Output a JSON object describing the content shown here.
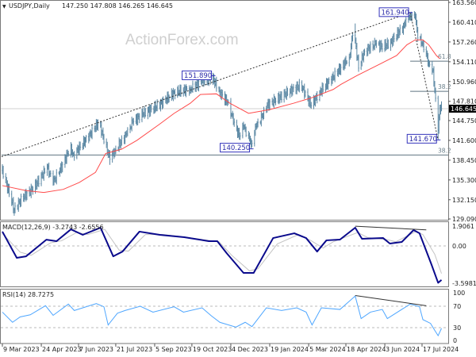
{
  "header": {
    "arrow": "▼",
    "symbol": "USDJPY,Daily",
    "ohlc": "147.250 147.808 146.265 146.645"
  },
  "watermark": "ActionForex.com",
  "colors": {
    "bars": "#5a87a3",
    "ma": "#ff4a4a",
    "macd": "#0a0a8c",
    "signal": "#c4c4c4",
    "rsi": "#4ea6ff",
    "label_box": "#3333bb",
    "price_tag_bg": "#000000"
  },
  "x_axis": {
    "labels": [
      {
        "date": "2023-03-09",
        "text": "9 Mar 2023"
      },
      {
        "date": "2023-04-24",
        "text": "24 Apr 2023"
      },
      {
        "date": "2023-06-07",
        "text": "7 Jun 2023"
      },
      {
        "date": "2023-07-21",
        "text": "21 Jul 2023"
      },
      {
        "date": "2023-09-05",
        "text": "5 Sep 2023"
      },
      {
        "date": "2023-10-19",
        "text": "19 Oct 2023"
      },
      {
        "date": "2023-12-04",
        "text": "4 Dec 2023"
      },
      {
        "date": "2024-01-19",
        "text": "19 Jan 2024"
      },
      {
        "date": "2024-03-05",
        "text": "5 Mar 2024"
      },
      {
        "date": "2024-04-18",
        "text": "18 Apr 2024"
      },
      {
        "date": "2024-06-03",
        "text": "3 Jun 2024"
      },
      {
        "date": "2024-07-17",
        "text": "17 Jul 2024"
      }
    ]
  },
  "chart_data": [
    {
      "type": "ohlc-bar",
      "panel": "price",
      "title": "USDJPY,Daily",
      "ylim": [
        129.09,
        163.56
      ],
      "y_ticks": [
        "163.560",
        "160.410",
        "157.260",
        "154.110",
        "150.960",
        "147.810",
        "144.750",
        "141.600",
        "138.450",
        "135.300",
        "132.150",
        "129.090"
      ],
      "current_price": 146.645,
      "current_price_label": "146.645",
      "closes": [
        {
          "d": "2023-03-09",
          "c": 136.8
        },
        {
          "d": "2023-03-23",
          "c": 130.6,
          "l": 129.6
        },
        {
          "d": "2023-04-02",
          "c": 132.5
        },
        {
          "d": "2023-04-15",
          "c": 134.0
        },
        {
          "d": "2023-05-01",
          "c": 137.3
        },
        {
          "d": "2023-05-08",
          "c": 134.9
        },
        {
          "d": "2023-05-20",
          "c": 137.9
        },
        {
          "d": "2023-05-28",
          "c": 140.5
        },
        {
          "d": "2023-06-01",
          "c": 139.3
        },
        {
          "d": "2023-06-17",
          "c": 141.9
        },
        {
          "d": "2023-07-01",
          "c": 144.5,
          "h": 145.1
        },
        {
          "d": "2023-07-14",
          "c": 138.6,
          "l": 137.7
        },
        {
          "d": "2023-07-20",
          "c": 140.0
        },
        {
          "d": "2023-08-03",
          "c": 142.6
        },
        {
          "d": "2023-08-10",
          "c": 144.5
        },
        {
          "d": "2023-08-22",
          "c": 145.8
        },
        {
          "d": "2023-09-10",
          "c": 147.2
        },
        {
          "d": "2023-09-28",
          "c": 149.2
        },
        {
          "d": "2023-10-17",
          "c": 149.8
        },
        {
          "d": "2023-10-31",
          "c": 150.9
        },
        {
          "d": "2023-11-12",
          "c": 151.6,
          "h": 151.89
        },
        {
          "d": "2023-11-21",
          "c": 149.3
        },
        {
          "d": "2023-11-30",
          "c": 147.6
        },
        {
          "d": "2023-12-08",
          "c": 144.5
        },
        {
          "d": "2023-12-14",
          "c": 142.2
        },
        {
          "d": "2023-12-19",
          "c": 143.8
        },
        {
          "d": "2023-12-27",
          "c": 141.5
        },
        {
          "d": "2023-12-28",
          "c": 141.0,
          "l": 140.25
        },
        {
          "d": "2024-01-03",
          "c": 143.8
        },
        {
          "d": "2024-01-10",
          "c": 145.4
        },
        {
          "d": "2024-01-16",
          "c": 147.2
        },
        {
          "d": "2024-02-10",
          "c": 149.3
        },
        {
          "d": "2024-02-25",
          "c": 150.4
        },
        {
          "d": "2024-03-08",
          "c": 147.1
        },
        {
          "d": "2024-03-18",
          "c": 149.3
        },
        {
          "d": "2024-04-03",
          "c": 151.7
        },
        {
          "d": "2024-04-12",
          "c": 153.2
        },
        {
          "d": "2024-04-22",
          "c": 154.8
        },
        {
          "d": "2024-04-26",
          "c": 158.3
        },
        {
          "d": "2024-04-29",
          "c": 157.5,
          "h": 160.2
        },
        {
          "d": "2024-05-03",
          "c": 153.1
        },
        {
          "d": "2024-05-10",
          "c": 155.8
        },
        {
          "d": "2024-05-23",
          "c": 156.9
        },
        {
          "d": "2024-06-01",
          "c": 156.5
        },
        {
          "d": "2024-06-10",
          "c": 157.2
        },
        {
          "d": "2024-06-20",
          "c": 158.9
        },
        {
          "d": "2024-06-25",
          "c": 159.7
        },
        {
          "d": "2024-06-28",
          "c": 160.9
        },
        {
          "d": "2024-07-03",
          "c": 161.6,
          "h": 161.94
        },
        {
          "d": "2024-07-09",
          "c": 161.2
        },
        {
          "d": "2024-07-12",
          "c": 157.9
        },
        {
          "d": "2024-07-18",
          "c": 157.0
        },
        {
          "d": "2024-07-25",
          "c": 153.9
        },
        {
          "d": "2024-07-30",
          "c": 152.8
        },
        {
          "d": "2024-08-01",
          "c": 149.4
        },
        {
          "d": "2024-08-05",
          "c": 143.2,
          "l": 141.67
        },
        {
          "d": "2024-08-07",
          "c": 146.8
        },
        {
          "d": "2024-08-09",
          "c": 146.645,
          "o": 147.25,
          "h": 147.808,
          "l": 146.265
        }
      ],
      "moving_average": [
        {
          "d": "2023-03-09",
          "v": 134.4
        },
        {
          "d": "2023-04-06",
          "v": 133.6
        },
        {
          "d": "2023-04-27",
          "v": 133.3
        },
        {
          "d": "2023-05-20",
          "v": 133.8
        },
        {
          "d": "2023-06-08",
          "v": 134.9
        },
        {
          "d": "2023-06-27",
          "v": 136.5
        },
        {
          "d": "2023-07-09",
          "v": 139.5
        },
        {
          "d": "2023-07-28",
          "v": 140.2
        },
        {
          "d": "2023-08-15",
          "v": 141.6
        },
        {
          "d": "2023-09-10",
          "v": 144.1
        },
        {
          "d": "2023-09-28",
          "v": 145.9
        },
        {
          "d": "2023-10-17",
          "v": 147.5
        },
        {
          "d": "2023-10-29",
          "v": 148.9
        },
        {
          "d": "2023-11-17",
          "v": 149.0
        },
        {
          "d": "2023-12-03",
          "v": 147.5
        },
        {
          "d": "2023-12-25",
          "v": 145.9
        },
        {
          "d": "2024-01-19",
          "v": 146.5
        },
        {
          "d": "2024-02-16",
          "v": 147.5
        },
        {
          "d": "2024-03-09",
          "v": 148.4
        },
        {
          "d": "2024-04-03",
          "v": 149.7
        },
        {
          "d": "2024-04-12",
          "v": 150.5
        },
        {
          "d": "2024-05-01",
          "v": 151.9
        },
        {
          "d": "2024-05-29",
          "v": 153.8
        },
        {
          "d": "2024-06-17",
          "v": 155.1
        },
        {
          "d": "2024-06-29",
          "v": 156.8
        },
        {
          "d": "2024-07-09",
          "v": 157.6
        },
        {
          "d": "2024-07-18",
          "v": 157.6
        },
        {
          "d": "2024-07-25",
          "v": 156.8
        },
        {
          "d": "2024-08-03",
          "v": 155.1
        },
        {
          "d": "2024-08-07",
          "v": 154.6
        }
      ],
      "annotations": {
        "price_labels": [
          {
            "d": "2023-11-13",
            "v": 151.89,
            "text": "151.890",
            "side": "left"
          },
          {
            "d": "2023-12-28",
            "v": 140.25,
            "text": "140.250",
            "side": "left"
          },
          {
            "d": "2024-07-03",
            "v": 161.94,
            "text": "161.940",
            "side": "left"
          },
          {
            "d": "2024-08-05",
            "v": 141.67,
            "text": "141.670",
            "side": "left"
          }
        ],
        "trendlines": [
          {
            "from": {
              "d": "2023-03-08",
              "v": 139.0
            },
            "to": {
              "d": "2024-07-03",
              "v": 161.94
            },
            "style": "dotted"
          },
          {
            "from": {
              "d": "2024-07-03",
              "v": 161.94
            },
            "to": {
              "d": "2024-08-05",
              "v": 141.67
            },
            "style": "dotted"
          }
        ],
        "fib_levels": [
          {
            "v": 154.2,
            "text": "61.8",
            "from": "2024-07-03"
          },
          {
            "v": 149.41,
            "text": "38.2",
            "from": "2024-07-03"
          },
          {
            "v": 139.27,
            "text": "38.2",
            "from": "2023-03-08"
          }
        ]
      }
    },
    {
      "type": "line",
      "panel": "macd",
      "label": "MACD(12,26,9) -3.2743 -2.6556",
      "y_ticks": [
        "1.9061",
        "0.00",
        "-3.5981"
      ],
      "ylim": [
        -3.5981,
        1.9061
      ],
      "macd": [
        {
          "d": "2023-03-09",
          "v": 1.38
        },
        {
          "d": "2023-03-26",
          "v": -1.15
        },
        {
          "d": "2023-04-06",
          "v": -1.0
        },
        {
          "d": "2023-04-30",
          "v": 0.6
        },
        {
          "d": "2023-05-12",
          "v": 0.46
        },
        {
          "d": "2023-05-29",
          "v": 1.6
        },
        {
          "d": "2023-06-12",
          "v": 1.07
        },
        {
          "d": "2023-07-03",
          "v": 1.76
        },
        {
          "d": "2023-07-18",
          "v": -1.0
        },
        {
          "d": "2023-07-29",
          "v": -0.54
        },
        {
          "d": "2023-08-18",
          "v": 1.38
        },
        {
          "d": "2023-09-11",
          "v": 1.07
        },
        {
          "d": "2023-10-10",
          "v": 0.84
        },
        {
          "d": "2023-11-08",
          "v": 0.46
        },
        {
          "d": "2023-11-18",
          "v": 0.46
        },
        {
          "d": "2023-11-29",
          "v": -0.69
        },
        {
          "d": "2023-12-19",
          "v": -2.6
        },
        {
          "d": "2023-12-31",
          "v": -2.6
        },
        {
          "d": "2024-01-23",
          "v": 0.76
        },
        {
          "d": "2024-02-17",
          "v": 1.22
        },
        {
          "d": "2024-03-02",
          "v": 0.76
        },
        {
          "d": "2024-03-15",
          "v": -0.54
        },
        {
          "d": "2024-03-26",
          "v": 0.54
        },
        {
          "d": "2024-04-11",
          "v": 0.61
        },
        {
          "d": "2024-04-29",
          "v": 1.76
        },
        {
          "d": "2024-05-07",
          "v": 0.69
        },
        {
          "d": "2024-06-01",
          "v": 0.76
        },
        {
          "d": "2024-06-09",
          "v": 0.23
        },
        {
          "d": "2024-06-23",
          "v": 0.38
        },
        {
          "d": "2024-07-07",
          "v": 1.53
        },
        {
          "d": "2024-07-14",
          "v": 1.22
        },
        {
          "d": "2024-07-28",
          "v": -1.76
        },
        {
          "d": "2024-08-05",
          "v": -3.55
        },
        {
          "d": "2024-08-09",
          "v": -3.2743
        }
      ],
      "signal": [
        {
          "d": "2023-03-09",
          "v": 1.2
        },
        {
          "d": "2023-03-30",
          "v": -0.6
        },
        {
          "d": "2023-04-12",
          "v": -0.9
        },
        {
          "d": "2023-05-05",
          "v": 0.3
        },
        {
          "d": "2023-05-18",
          "v": 0.5
        },
        {
          "d": "2023-06-05",
          "v": 1.3
        },
        {
          "d": "2023-06-18",
          "v": 1.1
        },
        {
          "d": "2023-07-08",
          "v": 1.6
        },
        {
          "d": "2023-07-25",
          "v": -0.4
        },
        {
          "d": "2023-08-05",
          "v": -0.5
        },
        {
          "d": "2023-08-25",
          "v": 1.1
        },
        {
          "d": "2023-09-15",
          "v": 1.1
        },
        {
          "d": "2023-10-15",
          "v": 0.8
        },
        {
          "d": "2023-11-20",
          "v": 0.4
        },
        {
          "d": "2023-12-05",
          "v": -0.9
        },
        {
          "d": "2023-12-26",
          "v": -2.4
        },
        {
          "d": "2024-01-05",
          "v": -2.2
        },
        {
          "d": "2024-01-28",
          "v": 0.2
        },
        {
          "d": "2024-02-22",
          "v": 1.1
        },
        {
          "d": "2024-03-08",
          "v": 0.5
        },
        {
          "d": "2024-03-22",
          "v": -0.2
        },
        {
          "d": "2024-04-03",
          "v": 0.4
        },
        {
          "d": "2024-05-02",
          "v": 1.3
        },
        {
          "d": "2024-05-14",
          "v": 0.8
        },
        {
          "d": "2024-06-06",
          "v": 0.6
        },
        {
          "d": "2024-06-16",
          "v": 0.4
        },
        {
          "d": "2024-07-10",
          "v": 1.4
        },
        {
          "d": "2024-07-18",
          "v": 1.1
        },
        {
          "d": "2024-08-01",
          "v": -0.8
        },
        {
          "d": "2024-08-09",
          "v": -2.6556
        }
      ],
      "divergence_line": {
        "from": {
          "d": "2024-04-29",
          "v": 1.9
        },
        "to": {
          "d": "2024-07-22",
          "v": 1.55
        }
      }
    },
    {
      "type": "line",
      "panel": "rsi",
      "label": "RSI(14) 28.7275",
      "y_ticks": [
        "100",
        "70",
        "30",
        "0"
      ],
      "ylim": [
        0,
        100
      ],
      "levels": [
        70,
        30
      ],
      "rsi": [
        {
          "d": "2023-03-09",
          "v": 59
        },
        {
          "d": "2023-03-21",
          "v": 40
        },
        {
          "d": "2023-03-30",
          "v": 50
        },
        {
          "d": "2023-04-11",
          "v": 54
        },
        {
          "d": "2023-04-29",
          "v": 71
        },
        {
          "d": "2023-05-08",
          "v": 53
        },
        {
          "d": "2023-05-26",
          "v": 74
        },
        {
          "d": "2023-06-02",
          "v": 62
        },
        {
          "d": "2023-06-28",
          "v": 75
        },
        {
          "d": "2023-07-07",
          "v": 69
        },
        {
          "d": "2023-07-12",
          "v": 35
        },
        {
          "d": "2023-07-23",
          "v": 57
        },
        {
          "d": "2023-08-01",
          "v": 62
        },
        {
          "d": "2023-08-19",
          "v": 70
        },
        {
          "d": "2023-09-03",
          "v": 59
        },
        {
          "d": "2023-09-28",
          "v": 69
        },
        {
          "d": "2023-10-09",
          "v": 59
        },
        {
          "d": "2023-10-31",
          "v": 67
        },
        {
          "d": "2023-11-11",
          "v": 52
        },
        {
          "d": "2023-11-21",
          "v": 40
        },
        {
          "d": "2023-12-10",
          "v": 31
        },
        {
          "d": "2023-12-21",
          "v": 40
        },
        {
          "d": "2023-12-29",
          "v": 32
        },
        {
          "d": "2024-01-15",
          "v": 67
        },
        {
          "d": "2024-02-02",
          "v": 62
        },
        {
          "d": "2024-02-20",
          "v": 67
        },
        {
          "d": "2024-03-02",
          "v": 59
        },
        {
          "d": "2024-03-09",
          "v": 35
        },
        {
          "d": "2024-03-20",
          "v": 67
        },
        {
          "d": "2024-04-11",
          "v": 64
        },
        {
          "d": "2024-04-29",
          "v": 89
        },
        {
          "d": "2024-05-06",
          "v": 47
        },
        {
          "d": "2024-05-17",
          "v": 59
        },
        {
          "d": "2024-05-31",
          "v": 64
        },
        {
          "d": "2024-06-06",
          "v": 47
        },
        {
          "d": "2024-07-03",
          "v": 74
        },
        {
          "d": "2024-07-14",
          "v": 69
        },
        {
          "d": "2024-07-18",
          "v": 45
        },
        {
          "d": "2024-07-27",
          "v": 38
        },
        {
          "d": "2024-08-01",
          "v": 25
        },
        {
          "d": "2024-08-05",
          "v": 15
        },
        {
          "d": "2024-08-09",
          "v": 28.7275
        }
      ],
      "divergence_line": {
        "from": {
          "d": "2024-04-29",
          "v": 90
        },
        "to": {
          "d": "2024-07-22",
          "v": 71
        }
      }
    }
  ]
}
